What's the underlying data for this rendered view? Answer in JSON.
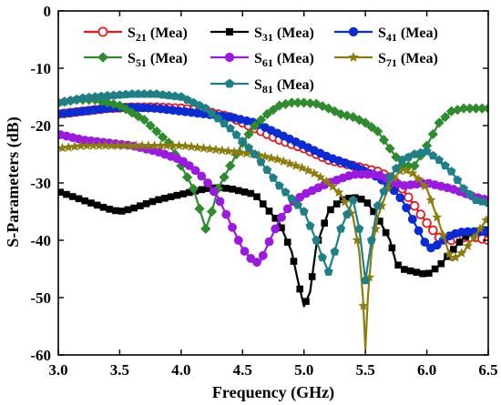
{
  "chart_data": {
    "type": "line",
    "xlabel": "Frequency (GHz)",
    "ylabel": "S-Parameters (dB)",
    "xlim": [
      3.0,
      6.5
    ],
    "ylim": [
      -60,
      0
    ],
    "xticks": [
      3.0,
      3.5,
      4.0,
      4.5,
      5.0,
      5.5,
      6.0,
      6.5
    ],
    "yticks": [
      0,
      -10,
      -20,
      -30,
      -40,
      -50,
      -60
    ],
    "xtick_labels": [
      "3.0",
      "3.5",
      "4.0",
      "4.5",
      "5.0",
      "5.5",
      "6.0",
      "6.5"
    ],
    "ytick_labels": [
      "0",
      "-10",
      "-20",
      "-30",
      "-40",
      "-50",
      "-60"
    ],
    "grid": false,
    "legend_position": "top",
    "series": [
      {
        "name": "S21 (Mea)",
        "sub": "21",
        "color": "#e8191e",
        "marker": "open-circle",
        "x": [
          3.0,
          3.2,
          3.4,
          3.6,
          3.8,
          4.0,
          4.2,
          4.4,
          4.6,
          4.8,
          5.0,
          5.1,
          5.2,
          5.3,
          5.4,
          5.5,
          5.6,
          5.7,
          5.8,
          5.9,
          6.0,
          6.1,
          6.2,
          6.3,
          6.4,
          6.5
        ],
        "y": [
          -18,
          -17.5,
          -17,
          -16.8,
          -16.8,
          -17,
          -17.5,
          -18.5,
          -20.5,
          -22.5,
          -24,
          -25,
          -26,
          -26.5,
          -27,
          -27.5,
          -28,
          -29,
          -31,
          -34,
          -37,
          -39.5,
          -40,
          -39.5,
          -39.5,
          -40
        ]
      },
      {
        "name": "S31 (Mea)",
        "sub": "31",
        "color": "#000000",
        "marker": "square",
        "x": [
          3.0,
          3.2,
          3.4,
          3.5,
          3.6,
          3.8,
          4.0,
          4.2,
          4.3,
          4.4,
          4.6,
          4.8,
          4.9,
          4.95,
          5.0,
          5.05,
          5.1,
          5.2,
          5.3,
          5.4,
          5.5,
          5.6,
          5.7,
          5.75,
          5.8,
          5.9,
          6.0,
          6.1,
          6.2,
          6.3,
          6.4,
          6.5
        ],
        "y": [
          -31.5,
          -33,
          -34.5,
          -35,
          -34.5,
          -33,
          -32,
          -31,
          -30.8,
          -31,
          -32,
          -37,
          -42,
          -47,
          -51.5,
          -49,
          -41,
          -35,
          -33,
          -32.5,
          -33,
          -36,
          -40,
          -44,
          -45,
          -45.5,
          -46,
          -44.5,
          -42,
          -39.5,
          -38.5,
          -38
        ]
      },
      {
        "name": "S41 (Mea)",
        "sub": "41",
        "color": "#0b2bd6",
        "marker": "circle",
        "x": [
          3.0,
          3.2,
          3.4,
          3.6,
          3.8,
          4.0,
          4.2,
          4.4,
          4.6,
          4.8,
          5.0,
          5.2,
          5.4,
          5.5,
          5.6,
          5.7,
          5.8,
          5.9,
          6.0,
          6.05,
          6.1,
          6.2,
          6.3,
          6.4,
          6.5
        ],
        "y": [
          -18,
          -17.5,
          -17,
          -16.8,
          -17,
          -17.5,
          -18,
          -18.5,
          -19.5,
          -21.5,
          -23.5,
          -25.5,
          -27,
          -28,
          -29,
          -30.5,
          -33,
          -37,
          -41,
          -41.5,
          -40.5,
          -39,
          -38.5,
          -38.5,
          -38.5
        ]
      },
      {
        "name": "S51 (Mea)",
        "sub": "51",
        "color": "#2e8b2e",
        "marker": "diamond",
        "x": [
          3.0,
          3.15,
          3.3,
          3.5,
          3.7,
          3.9,
          4.0,
          4.1,
          4.15,
          4.2,
          4.25,
          4.3,
          4.4,
          4.5,
          4.6,
          4.7,
          4.8,
          4.9,
          5.0,
          5.1,
          5.2,
          5.3,
          5.4,
          5.5,
          5.6,
          5.7,
          5.8,
          5.9,
          6.0,
          6.1,
          6.2,
          6.3,
          6.4,
          6.5
        ],
        "y": [
          -16,
          -15.5,
          -15.5,
          -16.5,
          -19,
          -23,
          -27,
          -31,
          -34.5,
          -38,
          -35,
          -31,
          -27,
          -23,
          -20,
          -18,
          -16.5,
          -16,
          -16,
          -16.2,
          -17,
          -18,
          -18.5,
          -19.5,
          -21,
          -24,
          -27,
          -27,
          -23.5,
          -19.5,
          -17.5,
          -17,
          -17,
          -17
        ]
      },
      {
        "name": "S61 (Mea)",
        "sub": "61",
        "color": "#9b19e0",
        "marker": "circle",
        "x": [
          3.0,
          3.2,
          3.4,
          3.6,
          3.8,
          4.0,
          4.1,
          4.2,
          4.3,
          4.4,
          4.5,
          4.6,
          4.65,
          4.7,
          4.8,
          4.9,
          5.0,
          5.2,
          5.4,
          5.6,
          5.8,
          6.0,
          6.2,
          6.4,
          6.5
        ],
        "y": [
          -21.5,
          -22.5,
          -23,
          -23.5,
          -24.5,
          -26,
          -27.5,
          -29.5,
          -32.5,
          -37,
          -41.5,
          -44,
          -43.5,
          -41,
          -36.5,
          -33.5,
          -32,
          -30,
          -28.5,
          -28.5,
          -30.5,
          -30,
          -31,
          -32.5,
          -33
        ]
      },
      {
        "name": "S71 (Mea)",
        "sub": "71",
        "color": "#8c7d0f",
        "marker": "star",
        "x": [
          3.0,
          3.2,
          3.4,
          3.6,
          3.8,
          4.0,
          4.2,
          4.4,
          4.6,
          4.8,
          5.0,
          5.1,
          5.2,
          5.3,
          5.4,
          5.45,
          5.48,
          5.5,
          5.52,
          5.55,
          5.6,
          5.7,
          5.8,
          5.9,
          6.0,
          6.1,
          6.2,
          6.3,
          6.4,
          6.5
        ],
        "y": [
          -24,
          -23.5,
          -23.5,
          -23.5,
          -23.5,
          -23.5,
          -24,
          -24.5,
          -25,
          -26,
          -27.5,
          -28.5,
          -30,
          -32,
          -36,
          -42,
          -50,
          -59,
          -50,
          -42,
          -36,
          -30,
          -27.5,
          -28.5,
          -31,
          -37,
          -43.5,
          -42,
          -39,
          -36
        ]
      },
      {
        "name": "S81 (Mea)",
        "sub": "81",
        "color": "#1e7f86",
        "marker": "pentagon",
        "x": [
          3.0,
          3.2,
          3.4,
          3.6,
          3.8,
          4.0,
          4.2,
          4.4,
          4.6,
          4.8,
          5.0,
          5.1,
          5.15,
          5.2,
          5.25,
          5.3,
          5.4,
          5.45,
          5.5,
          5.55,
          5.6,
          5.7,
          5.8,
          5.9,
          6.0,
          6.1,
          6.2,
          6.3,
          6.4,
          6.5
        ],
        "y": [
          -16,
          -15.2,
          -14.8,
          -14.5,
          -14.5,
          -15,
          -17,
          -20.5,
          -25,
          -30.5,
          -35,
          -40,
          -43,
          -45.5,
          -42,
          -38,
          -33,
          -38,
          -47,
          -40,
          -34,
          -29,
          -26,
          -25,
          -24.5,
          -26,
          -28,
          -31,
          -33,
          -33.5
        ]
      }
    ]
  }
}
